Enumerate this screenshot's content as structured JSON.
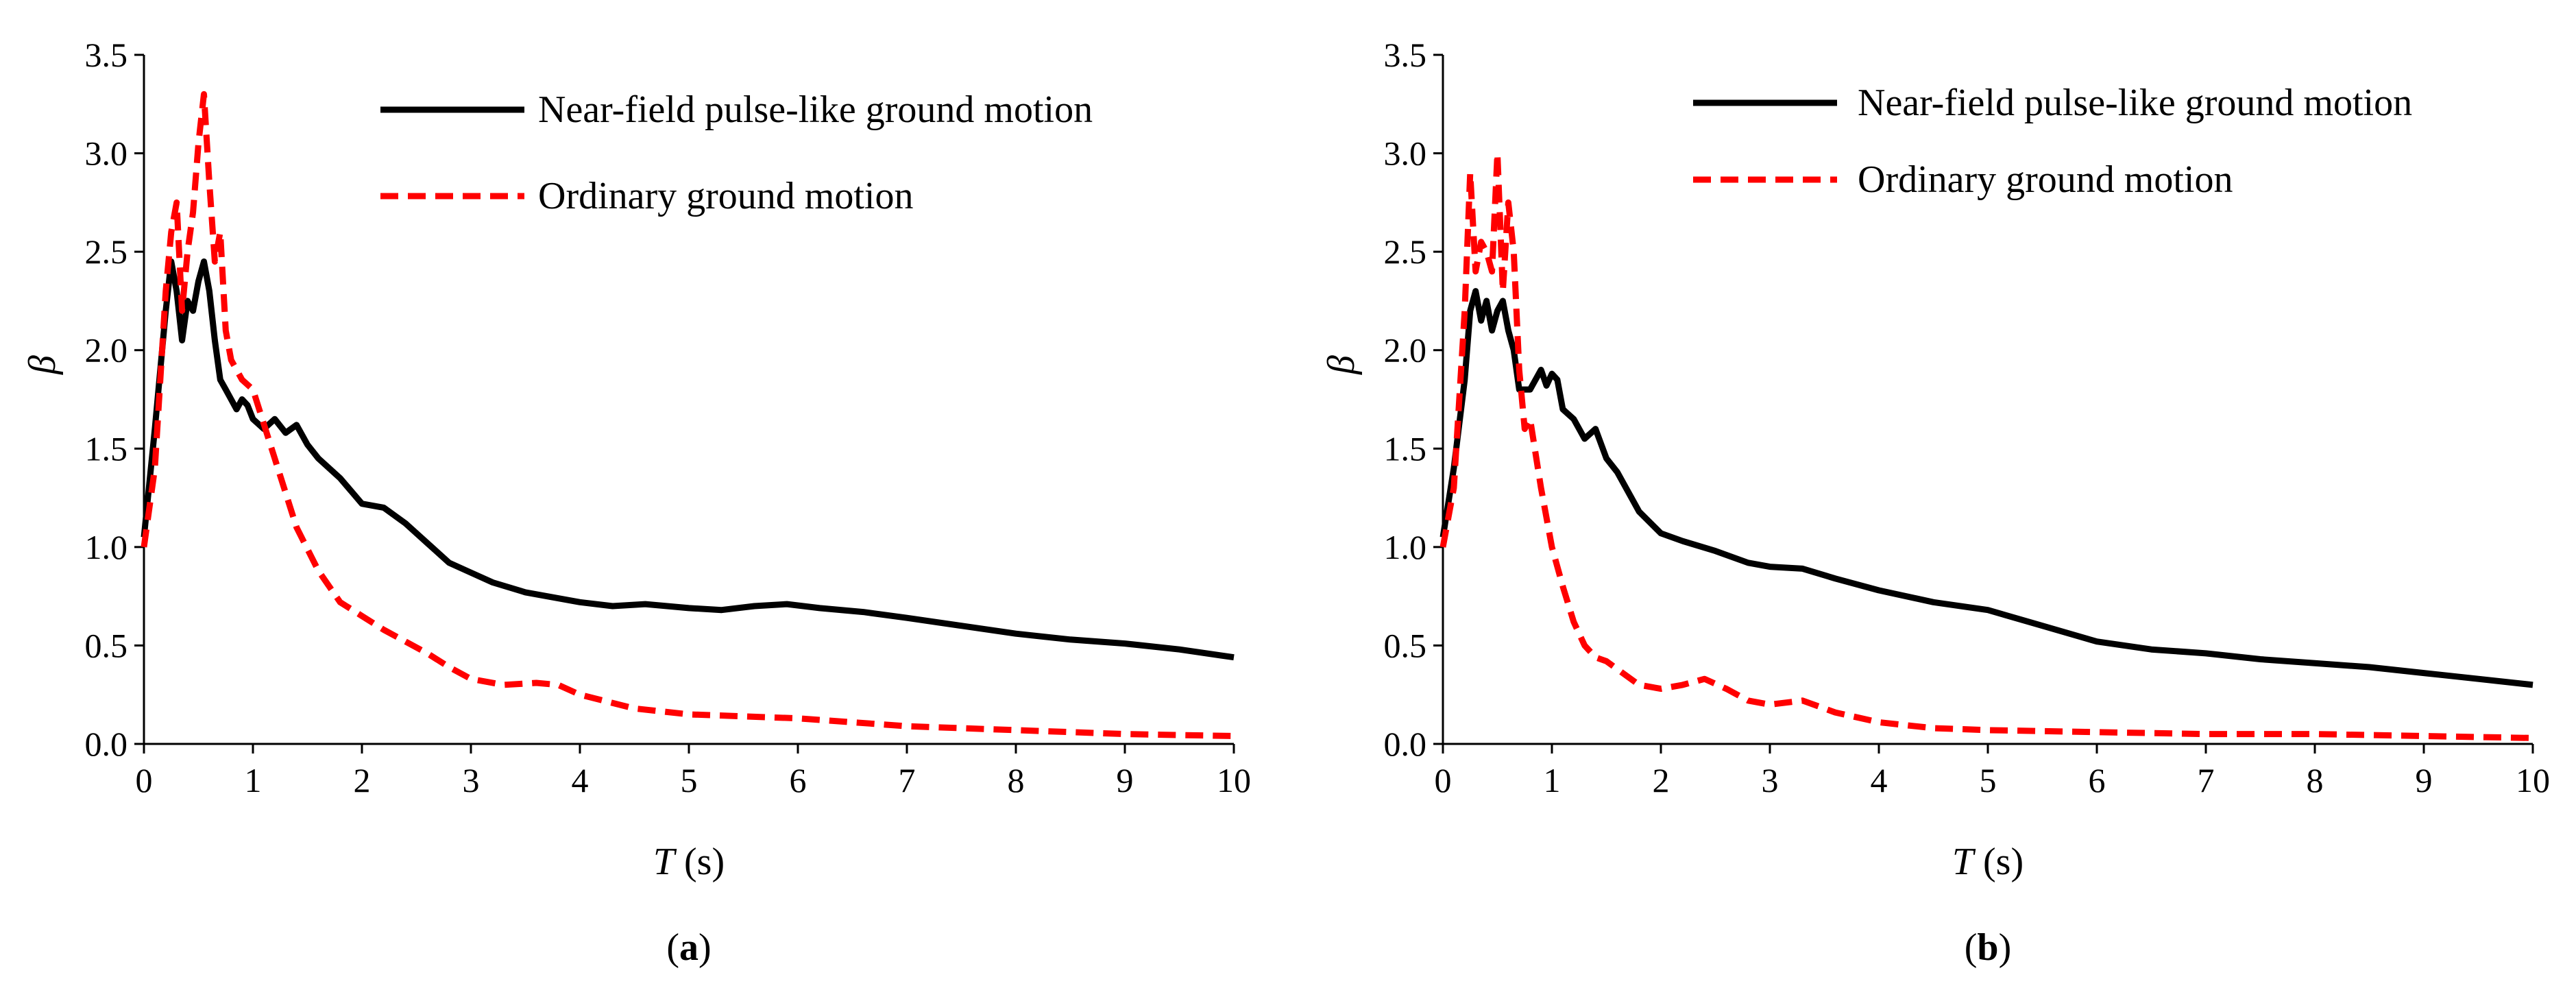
{
  "chart_data": [
    {
      "type": "line",
      "panel_label": "a",
      "xlabel_var": "T",
      "xlabel_unit": " (s)",
      "ylabel": "β",
      "xlim": [
        0,
        10
      ],
      "ylim": [
        0,
        3.5
      ],
      "xticks": [
        "0",
        "1",
        "2",
        "3",
        "4",
        "5",
        "6",
        "7",
        "8",
        "9",
        "10"
      ],
      "yticks": [
        "0.0",
        "0.5",
        "1.0",
        "1.5",
        "2.0",
        "2.5",
        "3.0",
        "3.5"
      ],
      "legend_position": "top-right",
      "series": [
        {
          "name": "Near-field pulse-like ground motion",
          "color": "#000000",
          "style": "solid",
          "x": [
            0,
            0.1,
            0.2,
            0.25,
            0.3,
            0.35,
            0.4,
            0.45,
            0.5,
            0.55,
            0.6,
            0.65,
            0.7,
            0.75,
            0.8,
            0.85,
            0.9,
            0.95,
            1.0,
            1.1,
            1.2,
            1.3,
            1.4,
            1.5,
            1.6,
            1.8,
            2.0,
            2.2,
            2.4,
            2.6,
            2.8,
            3.0,
            3.2,
            3.5,
            4.0,
            4.3,
            4.6,
            5.0,
            5.3,
            5.6,
            5.9,
            6.2,
            6.6,
            7.0,
            7.5,
            8.0,
            8.5,
            9.0,
            9.5,
            10.0
          ],
          "y": [
            1.05,
            1.6,
            2.2,
            2.45,
            2.3,
            2.05,
            2.25,
            2.2,
            2.35,
            2.45,
            2.3,
            2.05,
            1.85,
            1.8,
            1.75,
            1.7,
            1.75,
            1.72,
            1.65,
            1.6,
            1.65,
            1.58,
            1.62,
            1.52,
            1.45,
            1.35,
            1.22,
            1.2,
            1.12,
            1.02,
            0.92,
            0.87,
            0.82,
            0.77,
            0.72,
            0.7,
            0.71,
            0.69,
            0.68,
            0.7,
            0.71,
            0.69,
            0.67,
            0.64,
            0.6,
            0.56,
            0.53,
            0.51,
            0.48,
            0.44
          ]
        },
        {
          "name": "Ordinary ground motion",
          "color": "#ff0000",
          "style": "dashed",
          "x": [
            0,
            0.1,
            0.2,
            0.25,
            0.3,
            0.35,
            0.4,
            0.45,
            0.5,
            0.55,
            0.6,
            0.65,
            0.7,
            0.75,
            0.8,
            0.9,
            1.0,
            1.2,
            1.4,
            1.6,
            1.8,
            2.0,
            2.2,
            2.4,
            2.6,
            2.8,
            3.0,
            3.3,
            3.6,
            3.8,
            4.0,
            4.5,
            5.0,
            5.5,
            6.0,
            6.5,
            7.0,
            7.5,
            8.0,
            9.0,
            10.0
          ],
          "y": [
            1.0,
            1.4,
            2.3,
            2.6,
            2.75,
            2.2,
            2.5,
            2.7,
            3.05,
            3.3,
            2.85,
            2.45,
            2.6,
            2.1,
            1.95,
            1.85,
            1.8,
            1.45,
            1.1,
            0.88,
            0.72,
            0.65,
            0.58,
            0.52,
            0.46,
            0.39,
            0.33,
            0.3,
            0.31,
            0.3,
            0.25,
            0.18,
            0.15,
            0.14,
            0.13,
            0.11,
            0.09,
            0.08,
            0.07,
            0.05,
            0.04
          ]
        }
      ]
    },
    {
      "type": "line",
      "panel_label": "b",
      "xlabel_var": "T",
      "xlabel_unit": " (s)",
      "ylabel": "β",
      "xlim": [
        0,
        10
      ],
      "ylim": [
        0,
        3.5
      ],
      "xticks": [
        "0",
        "1",
        "2",
        "3",
        "4",
        "5",
        "6",
        "7",
        "8",
        "9",
        "10"
      ],
      "yticks": [
        "0.0",
        "0.5",
        "1.0",
        "1.5",
        "2.0",
        "2.5",
        "3.0",
        "3.5"
      ],
      "legend_position": "top-right",
      "series": [
        {
          "name": "Near-field pulse-like ground motion",
          "color": "#000000",
          "style": "solid",
          "x": [
            0,
            0.1,
            0.2,
            0.25,
            0.3,
            0.35,
            0.4,
            0.45,
            0.5,
            0.55,
            0.6,
            0.65,
            0.7,
            0.8,
            0.9,
            0.95,
            1.0,
            1.05,
            1.1,
            1.2,
            1.3,
            1.4,
            1.5,
            1.6,
            1.8,
            2.0,
            2.2,
            2.5,
            2.8,
            3.0,
            3.3,
            3.6,
            4.0,
            4.5,
            5.0,
            5.5,
            6.0,
            6.5,
            7.0,
            7.5,
            8.0,
            8.5,
            9.0,
            9.5,
            10.0
          ],
          "y": [
            1.05,
            1.4,
            1.85,
            2.2,
            2.3,
            2.15,
            2.25,
            2.1,
            2.2,
            2.25,
            2.1,
            2.0,
            1.8,
            1.8,
            1.9,
            1.82,
            1.88,
            1.85,
            1.7,
            1.65,
            1.55,
            1.6,
            1.45,
            1.38,
            1.18,
            1.07,
            1.03,
            0.98,
            0.92,
            0.9,
            0.89,
            0.84,
            0.78,
            0.72,
            0.68,
            0.6,
            0.52,
            0.48,
            0.46,
            0.43,
            0.41,
            0.39,
            0.36,
            0.33,
            0.3
          ]
        },
        {
          "name": "Ordinary ground motion",
          "color": "#ff0000",
          "style": "dashed",
          "x": [
            0,
            0.1,
            0.2,
            0.25,
            0.3,
            0.35,
            0.4,
            0.45,
            0.5,
            0.55,
            0.6,
            0.65,
            0.7,
            0.75,
            0.8,
            0.9,
            1.0,
            1.1,
            1.2,
            1.3,
            1.4,
            1.5,
            1.6,
            1.8,
            2.0,
            2.2,
            2.4,
            2.6,
            2.8,
            3.0,
            3.3,
            3.6,
            4.0,
            4.5,
            5.0,
            6.0,
            7.0,
            8.0,
            9.0,
            10.0
          ],
          "y": [
            1.0,
            1.3,
            2.2,
            2.9,
            2.4,
            2.55,
            2.5,
            2.4,
            3.0,
            2.3,
            2.75,
            2.5,
            1.9,
            1.6,
            1.65,
            1.3,
            1.0,
            0.8,
            0.62,
            0.5,
            0.44,
            0.42,
            0.38,
            0.3,
            0.28,
            0.3,
            0.33,
            0.28,
            0.22,
            0.2,
            0.22,
            0.16,
            0.11,
            0.08,
            0.07,
            0.06,
            0.05,
            0.05,
            0.04,
            0.03
          ]
        }
      ]
    }
  ]
}
